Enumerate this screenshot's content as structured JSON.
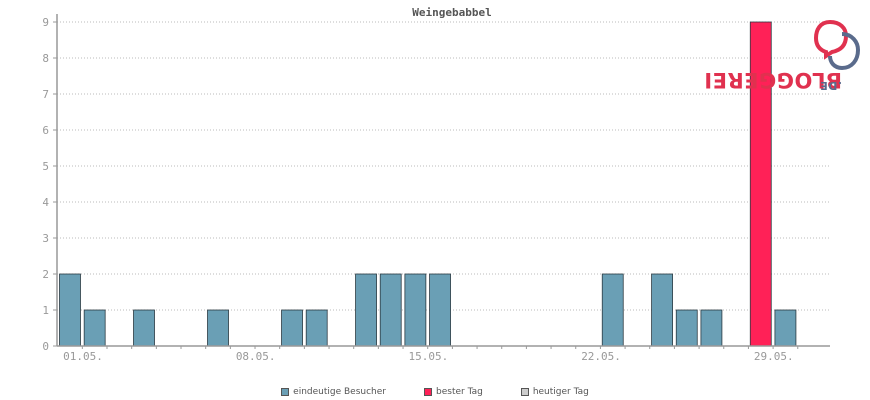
{
  "chart_data": {
    "type": "bar",
    "title": "Weingebabbel",
    "ylim": [
      0,
      9
    ],
    "yticks": [
      0,
      1,
      2,
      3,
      4,
      5,
      6,
      7,
      8,
      9
    ],
    "x_tick_labels": [
      "01.05.",
      "08.05.",
      "15.05.",
      "22.05.",
      "29.05."
    ],
    "x_tick_days": [
      1,
      8,
      15,
      22,
      29
    ],
    "days": [
      1,
      2,
      3,
      4,
      5,
      6,
      7,
      8,
      9,
      10,
      11,
      12,
      13,
      14,
      15,
      16,
      17,
      18,
      19,
      20,
      21,
      22,
      23,
      24,
      25,
      26,
      27,
      28,
      29,
      30
    ],
    "series": [
      {
        "name": "eindeutige Besucher",
        "color": "#6a9fb5",
        "values": [
          2,
          1,
          0,
          1,
          0,
          0,
          1,
          0,
          0,
          1,
          1,
          0,
          2,
          2,
          2,
          2,
          0,
          0,
          0,
          0,
          0,
          0,
          2,
          0,
          2,
          1,
          1,
          0,
          0,
          1
        ]
      },
      {
        "name": "bester Tag",
        "color": "#ff2157",
        "values": [
          0,
          0,
          0,
          0,
          0,
          0,
          0,
          0,
          0,
          0,
          0,
          0,
          0,
          0,
          0,
          0,
          0,
          0,
          0,
          0,
          0,
          0,
          0,
          0,
          0,
          0,
          0,
          0,
          9,
          0
        ]
      },
      {
        "name": "heutiger Tag",
        "color": "#cccccc",
        "values": [
          0,
          0,
          0,
          0,
          0,
          0,
          0,
          0,
          0,
          0,
          0,
          0,
          0,
          0,
          0,
          0,
          0,
          0,
          0,
          0,
          0,
          0,
          0,
          0,
          0,
          0,
          0,
          0,
          0,
          0
        ]
      }
    ],
    "grid": true,
    "legend_position": "bottom-center"
  },
  "legend": {
    "items": [
      {
        "label": "eindeutige Besucher",
        "color": "#6a9fb5"
      },
      {
        "label": "bester Tag",
        "color": "#ff2157"
      },
      {
        "label": "heutiger Tag",
        "color": "#cccccc"
      }
    ]
  },
  "logo": {
    "text_main": "BLOGGEREI",
    "text_tld": ".DE",
    "icon": "bloggerei-logo-icon",
    "colors": {
      "primary": "#e0314f",
      "secondary": "#5a6b8c"
    }
  }
}
